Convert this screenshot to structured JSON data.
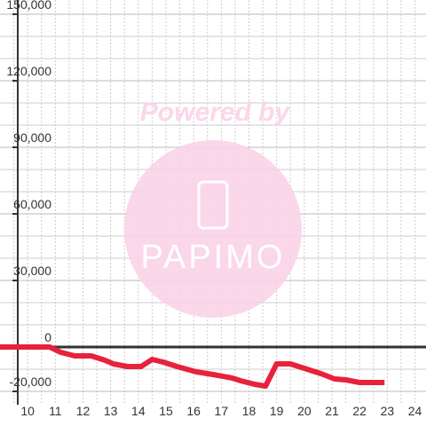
{
  "chart_data": {
    "type": "line",
    "x": [
      9,
      10.8,
      11.2,
      11.7,
      12.3,
      12.8,
      13.1,
      13.6,
      14.1,
      14.5,
      14.9,
      15.4,
      16.1,
      16.7,
      17.4,
      17.7,
      18.2,
      18.6,
      19.0,
      19.5,
      20.0,
      20.6,
      21.1,
      21.5,
      22.0,
      22.9
    ],
    "series": [
      {
        "color": "#e8223c",
        "values": [
          0,
          0,
          -2400,
          -4000,
          -4000,
          -6000,
          -7600,
          -8800,
          -8800,
          -5600,
          -6800,
          -8800,
          -11200,
          -12400,
          -14000,
          -15200,
          -16800,
          -17600,
          -7600,
          -7600,
          -9600,
          -12000,
          -14400,
          -14800,
          -16000,
          -16000
        ]
      }
    ],
    "xlim": [
      9,
      24.4
    ],
    "ylim": [
      -26000,
      156400
    ],
    "xticks": [
      10,
      11,
      12,
      13,
      14,
      15,
      16,
      17,
      18,
      19,
      20,
      21,
      22,
      23,
      24
    ],
    "yticks": [
      {
        "value": -20000,
        "label": "-20,000"
      },
      0,
      {
        "value": 30000,
        "label": "30,000"
      },
      {
        "value": 60000,
        "label": "60,000"
      },
      {
        "value": 90000,
        "label": "90,000"
      },
      {
        "value": 120000,
        "label": "120,000"
      },
      {
        "value": 150000,
        "label": "150,000"
      }
    ],
    "x_minor_ticks": [
      9.5,
      10.5,
      11.5,
      12.5,
      13.5,
      14.5,
      15.5,
      16.5,
      17.5,
      18.5,
      19.5,
      20.5,
      21.5,
      22.5,
      23.5
    ],
    "y_minor_ticks": [
      -10000,
      10000,
      20000,
      40000,
      50000,
      70000,
      80000,
      100000,
      110000,
      130000,
      140000
    ],
    "grid": true
  },
  "watermark": {
    "text": "Powered by",
    "logo": "PAPIMO"
  }
}
